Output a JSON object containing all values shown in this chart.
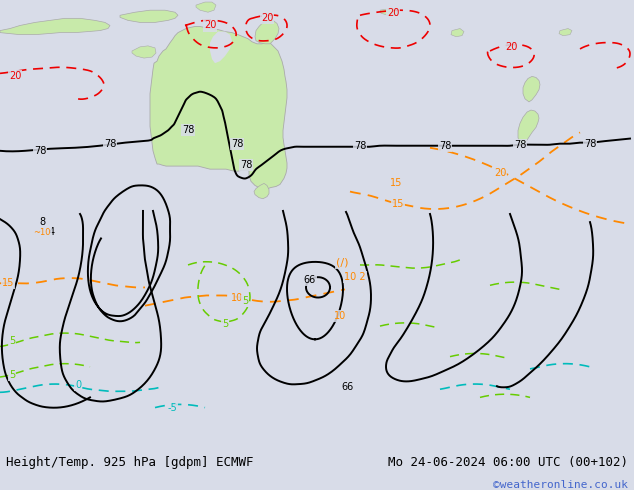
{
  "title_left": "Height/Temp. 925 hPa [gdpm] ECMWF",
  "title_right": "Mo 24-06-2024 06:00 UTC (00+102)",
  "watermark": "©weatheronline.co.uk",
  "bg_color": "#d8dce8",
  "ocean_color": "#d8dce8",
  "land_color": "#c8eaaa",
  "land_edge_color": "#aaaaaa",
  "bottom_bar_color": "#e8e8e8",
  "title_fontsize": 9,
  "watermark_color": "#4466cc",
  "watermark_fontsize": 8,
  "black_lw": 1.4,
  "orange_lw": 1.3,
  "red_lw": 1.2,
  "green_lw": 1.1,
  "cyan_lw": 1.2
}
